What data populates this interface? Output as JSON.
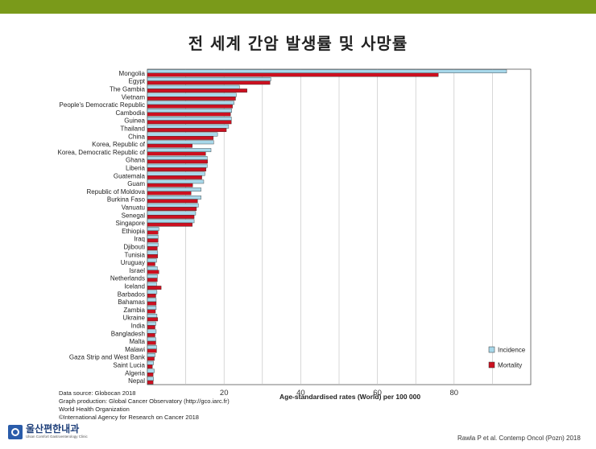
{
  "slide": {
    "title": "전 세계 간암 발생률 및 사망률",
    "top_bar_color": "#7a9a1a",
    "source_lines": [
      "Data source: Globocan 2018",
      "Graph production: Global Cancer Observatory (http://gco.iarc.fr)",
      "World Health Organization",
      "©International Agency for Research on Cancer 2018"
    ],
    "logo": {
      "name": "울산편한내과",
      "subtitle": "Ulsan Comfort Gastroenterology Clinic",
      "icon": "clinic-logo-icon"
    },
    "citation": "Rawla P et al. Contemp Oncol (Pozn) 2018"
  },
  "chart_data": {
    "type": "bar",
    "orientation": "horizontal",
    "xlabel": "Age-standardised rates (World) per 100 000",
    "xlim": [
      0,
      100
    ],
    "xticks": [
      20,
      40,
      60,
      80
    ],
    "grid": true,
    "legend_position": "bottom-right",
    "colors": {
      "Incidence": "#a8d8ea",
      "Mortality": "#cc1020"
    },
    "categories": [
      "Mongolia",
      "Egypt",
      "The Gambia",
      "Vietnam",
      "People's Democratic Republic",
      "Cambodia",
      "Guinea",
      "Thailand",
      "China",
      "Korea, Republic of",
      "Korea, Democratic Republic of",
      "Ghana",
      "Liberia",
      "Guatemala",
      "Guam",
      "Republic of Moldova",
      "Burkina Faso",
      "Vanuatu",
      "Senegal",
      "Singapore",
      "Ethiopia",
      "Iraq",
      "Djibouti",
      "Tunisia",
      "Uruguay",
      "Israel",
      "Netherlands",
      "Iceland",
      "Barbados",
      "Bahamas",
      "Zambia",
      "Ukraine",
      "India",
      "Bangladesh",
      "Malta",
      "Malawi",
      "Gaza Strip and West Bank",
      "Saint Lucia",
      "Algeria",
      "Nepal"
    ],
    "series": [
      {
        "name": "Incidence",
        "values": [
          93.7,
          32.2,
          24.0,
          23.2,
          22.6,
          22.0,
          21.9,
          21.2,
          18.3,
          17.3,
          16.6,
          15.6,
          15.6,
          15.0,
          14.7,
          14.0,
          14.0,
          13.3,
          12.6,
          12.2,
          3.0,
          2.8,
          2.8,
          2.7,
          2.4,
          2.6,
          2.6,
          2.4,
          2.5,
          2.3,
          2.3,
          2.5,
          2.2,
          2.3,
          2.2,
          2.4,
          2.0,
          1.6,
          1.8,
          1.6
        ]
      },
      {
        "name": "Mortality",
        "values": [
          75.9,
          32.0,
          26.0,
          23.0,
          22.2,
          21.7,
          21.9,
          20.6,
          17.2,
          11.7,
          15.2,
          15.7,
          15.3,
          14.2,
          11.8,
          11.4,
          13.1,
          12.8,
          12.2,
          11.7,
          2.8,
          2.8,
          2.6,
          2.7,
          2.0,
          3.0,
          2.6,
          3.6,
          2.2,
          2.3,
          2.1,
          2.7,
          2.0,
          2.0,
          2.2,
          2.4,
          1.8,
          1.3,
          1.5,
          1.5
        ]
      }
    ]
  }
}
